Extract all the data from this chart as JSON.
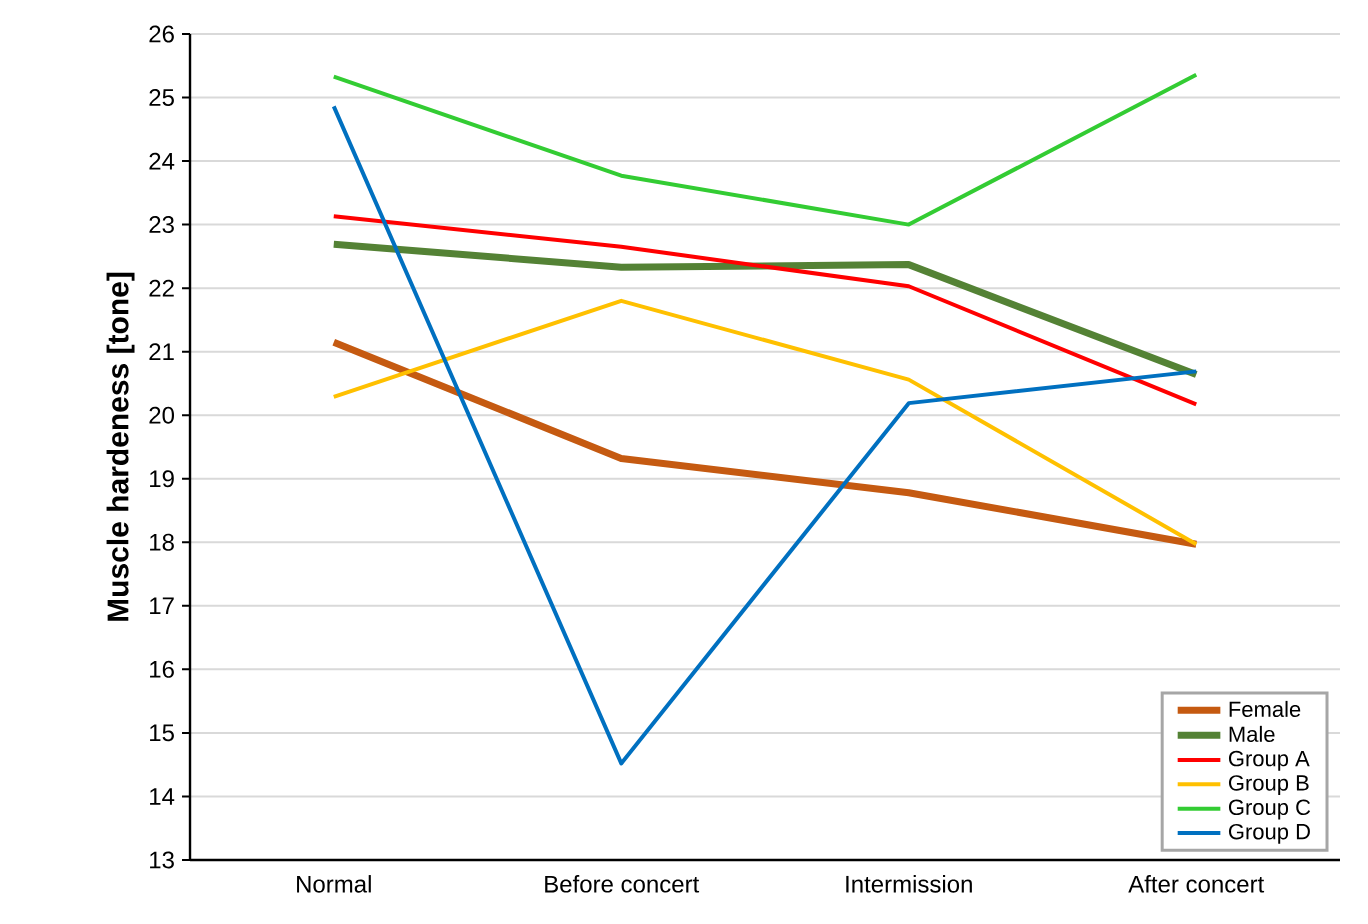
{
  "chart_data": {
    "type": "line",
    "ylabel": "Muscle hardeness [tone]",
    "categories": [
      "Normal",
      "Before concert",
      "Intermission",
      "After concert"
    ],
    "series": [
      {
        "name": "Female",
        "color": "#c55a11",
        "values": [
          21.15,
          19.32,
          18.78,
          17.97
        ]
      },
      {
        "name": "Male",
        "color": "#548235",
        "values": [
          22.69,
          22.33,
          22.37,
          20.64
        ]
      },
      {
        "name": "Group A",
        "color": "#ff0000",
        "values": [
          23.13,
          22.65,
          22.03,
          20.17
        ]
      },
      {
        "name": "Group B",
        "color": "#ffc000",
        "values": [
          20.29,
          21.8,
          20.56,
          17.97
        ]
      },
      {
        "name": "Group C",
        "color": "#33cc33",
        "values": [
          25.33,
          23.77,
          23.0,
          25.36
        ]
      },
      {
        "name": "Group D",
        "color": "#0070c0",
        "values": [
          24.86,
          14.52,
          20.19,
          20.69
        ]
      }
    ],
    "ylim": [
      13,
      26
    ],
    "yticks": [
      13,
      14,
      15,
      16,
      17,
      18,
      19,
      20,
      21,
      22,
      23,
      24,
      25,
      26
    ],
    "grid": "y",
    "legend": "bottom right",
    "marker": "none",
    "line_style": "solid"
  }
}
